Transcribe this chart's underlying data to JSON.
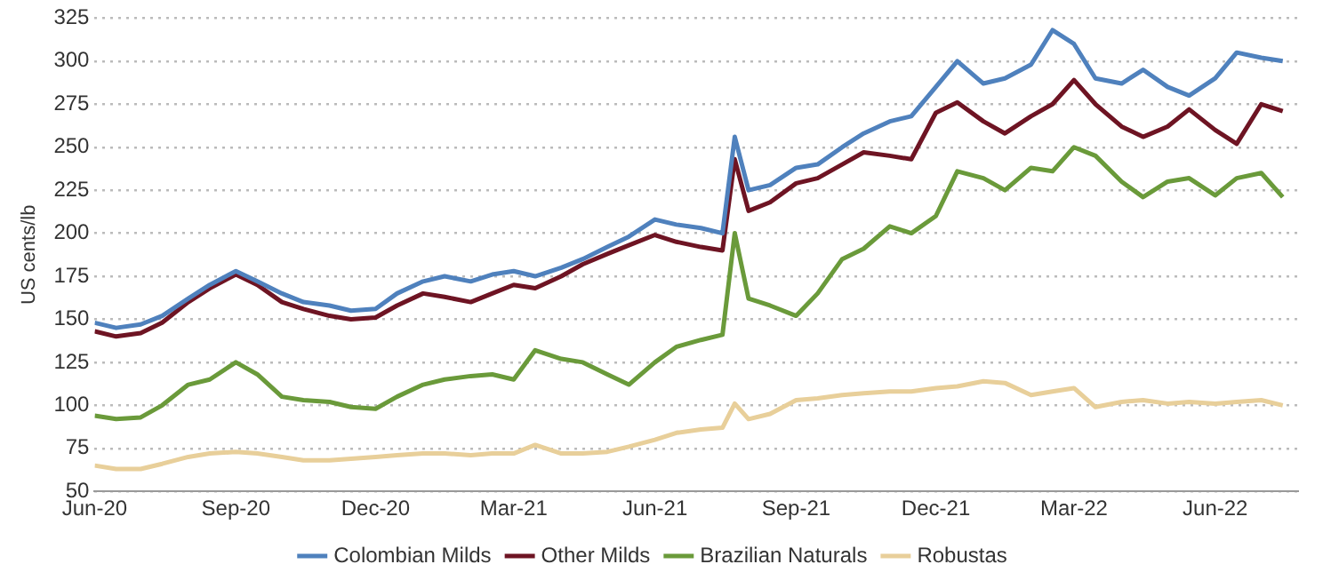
{
  "chart_data": {
    "type": "line",
    "ylabel": "US cents/lb",
    "x": [
      "2020-06-01",
      "2020-06-15",
      "2020-07-01",
      "2020-07-15",
      "2020-08-01",
      "2020-08-15",
      "2020-09-01",
      "2020-09-15",
      "2020-10-01",
      "2020-10-15",
      "2020-11-01",
      "2020-11-15",
      "2020-12-01",
      "2020-12-15",
      "2021-01-01",
      "2021-01-15",
      "2021-02-01",
      "2021-02-15",
      "2021-03-01",
      "2021-03-15",
      "2021-04-01",
      "2021-04-15",
      "2021-05-01",
      "2021-05-15",
      "2021-06-01",
      "2021-06-15",
      "2021-07-01",
      "2021-07-15",
      "2021-07-23",
      "2021-08-01",
      "2021-08-15",
      "2021-09-01",
      "2021-09-15",
      "2021-10-01",
      "2021-10-15",
      "2021-11-01",
      "2021-11-15",
      "2021-12-01",
      "2021-12-15",
      "2022-01-01",
      "2022-01-15",
      "2022-02-01",
      "2022-02-15",
      "2022-03-01",
      "2022-03-15",
      "2022-04-01",
      "2022-04-15",
      "2022-05-01",
      "2022-05-15",
      "2022-06-01",
      "2022-06-15",
      "2022-07-01",
      "2022-07-15"
    ],
    "series": [
      {
        "name": "Colombian Milds",
        "color": "#4f81bd",
        "values": [
          148,
          145,
          147,
          152,
          162,
          170,
          178,
          172,
          165,
          160,
          158,
          155,
          156,
          165,
          172,
          175,
          172,
          176,
          178,
          175,
          180,
          185,
          192,
          198,
          208,
          205,
          203,
          200,
          256,
          225,
          228,
          238,
          240,
          250,
          258,
          265,
          268,
          285,
          300,
          287,
          290,
          298,
          318,
          310,
          290,
          287,
          295,
          285,
          280,
          290,
          305,
          302,
          300
        ]
      },
      {
        "name": "Other Milds",
        "color": "#6e1423",
        "values": [
          143,
          140,
          142,
          148,
          160,
          168,
          176,
          170,
          160,
          156,
          152,
          150,
          151,
          158,
          165,
          163,
          160,
          165,
          170,
          168,
          175,
          182,
          188,
          193,
          199,
          195,
          192,
          190,
          243,
          213,
          218,
          229,
          232,
          240,
          247,
          245,
          243,
          270,
          276,
          265,
          258,
          268,
          275,
          289,
          275,
          262,
          256,
          262,
          272,
          260,
          252,
          275,
          271
        ]
      },
      {
        "name": "Brazilian Naturals",
        "color": "#6a9a3a",
        "values": [
          94,
          92,
          93,
          100,
          112,
          115,
          125,
          118,
          105,
          103,
          102,
          99,
          98,
          105,
          112,
          115,
          117,
          118,
          115,
          132,
          127,
          125,
          118,
          112,
          125,
          134,
          138,
          141,
          200,
          162,
          158,
          152,
          165,
          185,
          191,
          204,
          200,
          210,
          236,
          232,
          225,
          238,
          236,
          250,
          245,
          230,
          221,
          230,
          232,
          222,
          232,
          235,
          221
        ]
      },
      {
        "name": "Robustas",
        "color": "#e8cf9a",
        "values": [
          65,
          63,
          63,
          66,
          70,
          72,
          73,
          72,
          70,
          68,
          68,
          69,
          70,
          71,
          72,
          72,
          71,
          72,
          72,
          77,
          72,
          72,
          73,
          76,
          80,
          84,
          86,
          87,
          101,
          92,
          95,
          103,
          104,
          106,
          107,
          108,
          108,
          110,
          111,
          114,
          113,
          106,
          108,
          110,
          99,
          102,
          103,
          101,
          102,
          101,
          102,
          103,
          100
        ]
      }
    ],
    "xlim": [
      "2020-06-01",
      "2022-07-25"
    ],
    "xticks": [
      {
        "value": "2020-06-01",
        "label": "Jun-20"
      },
      {
        "value": "2020-09-01",
        "label": "Sep-20"
      },
      {
        "value": "2020-12-01",
        "label": "Dec-20"
      },
      {
        "value": "2021-03-01",
        "label": "Mar-21"
      },
      {
        "value": "2021-06-01",
        "label": "Jun-21"
      },
      {
        "value": "2021-09-01",
        "label": "Sep-21"
      },
      {
        "value": "2021-12-01",
        "label": "Dec-21"
      },
      {
        "value": "2022-03-01",
        "label": "Mar-22"
      },
      {
        "value": "2022-06-01",
        "label": "Jun-22"
      }
    ],
    "ylim": [
      50,
      325
    ],
    "yticks": [
      50,
      75,
      100,
      125,
      150,
      175,
      200,
      225,
      250,
      275,
      300,
      325
    ],
    "grid": "y",
    "legend": "bottom",
    "marker": "none",
    "line_style": "solid"
  }
}
